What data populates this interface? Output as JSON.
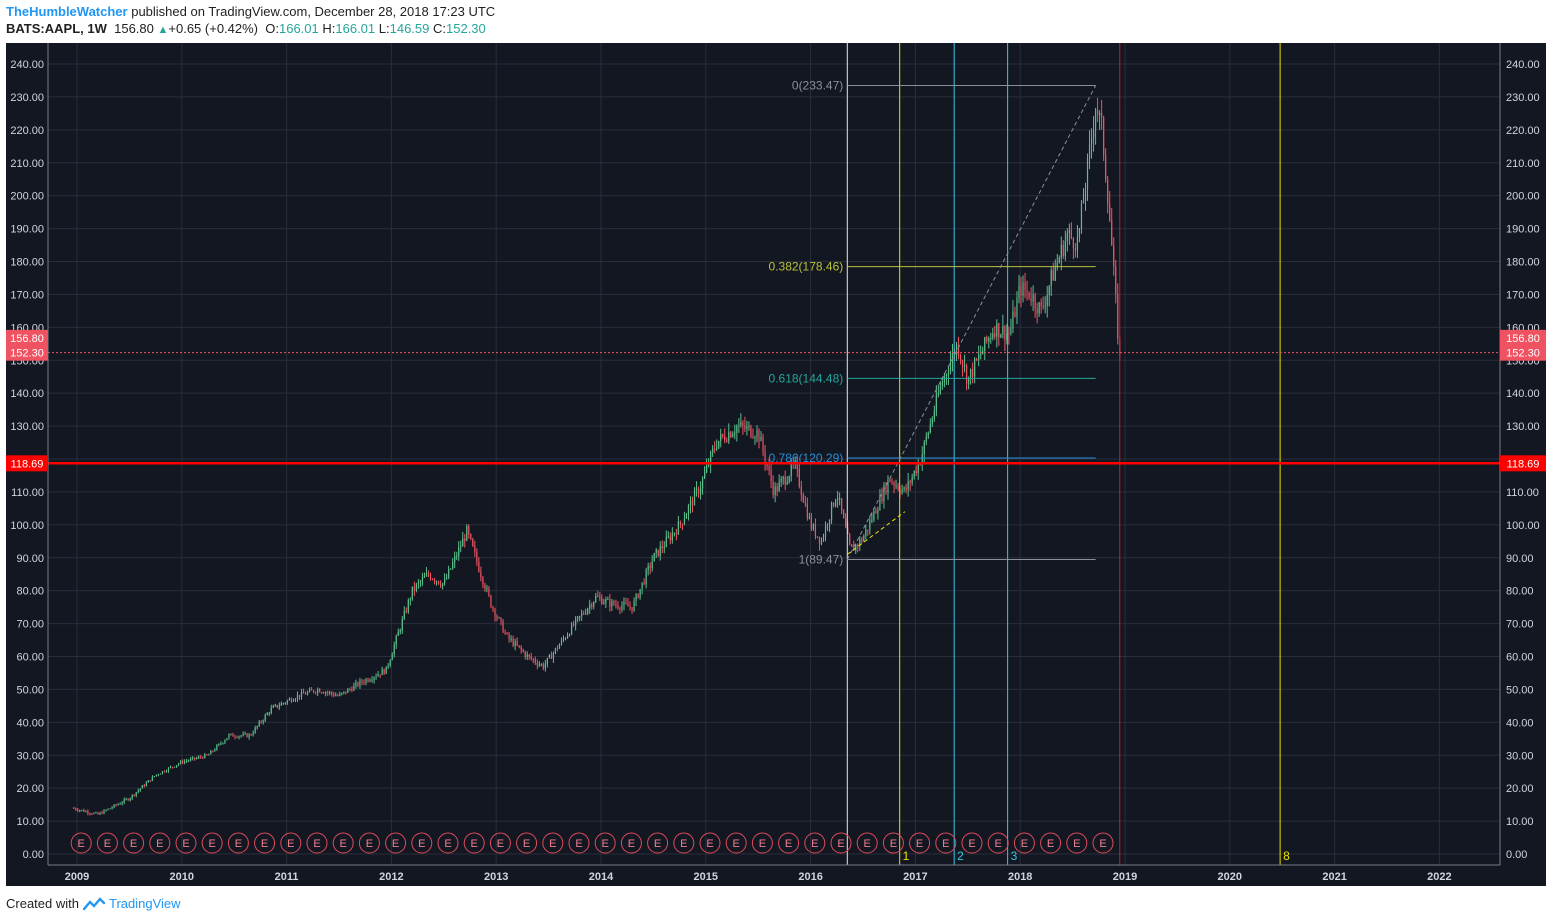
{
  "header": {
    "author": "TheHumbleWatcher",
    "published": "published on TradingView.com, December 28, 2018 17:23 UTC",
    "symbol": "BATS:AAPL, 1W",
    "price": "156.80",
    "change_arrow": "▲",
    "change": "+0.65 (+0.42%)",
    "open_label": "O:",
    "open": "166.01",
    "high_label": "H:",
    "high": "166.01",
    "low_label": "L:",
    "low": "146.59",
    "close_label": "C:",
    "close": "152.30"
  },
  "footer": {
    "created_with": "Created with",
    "brand": "TradingView"
  },
  "colors": {
    "background": "#131722",
    "up": "#5bbd8a",
    "down": "#ef5362",
    "grid": "#2a2e39",
    "axis_text": "#d1d4dc",
    "support": "#ff0000",
    "yellow": "#e8e000",
    "cyan": "#35c8e6",
    "earnings": "#e04a5a"
  },
  "chart_data": {
    "type": "candlestick",
    "ylim": [
      0,
      240
    ],
    "y_ticks": [
      "0.00",
      "10.00",
      "20.00",
      "30.00",
      "40.00",
      "50.00",
      "60.00",
      "70.00",
      "80.00",
      "90.00",
      "100.00",
      "110.00",
      "120.00",
      "130.00",
      "140.00",
      "150.00",
      "160.00",
      "170.00",
      "180.00",
      "190.00",
      "200.00",
      "210.00",
      "220.00",
      "230.00",
      "240.00"
    ],
    "x_ticks": [
      "2009",
      "2010",
      "2011",
      "2012",
      "2013",
      "2014",
      "2015",
      "2016",
      "2017",
      "2018",
      "2019",
      "2020",
      "2021",
      "2022"
    ],
    "series": [
      {
        "keypoints": [
          [
            2008.95,
            14
          ],
          [
            2009.2,
            12
          ],
          [
            2009.5,
            17
          ],
          [
            2009.75,
            24
          ],
          [
            2010.0,
            28
          ],
          [
            2010.25,
            30
          ],
          [
            2010.45,
            36
          ],
          [
            2010.65,
            36
          ],
          [
            2010.85,
            44
          ],
          [
            2011.1,
            48
          ],
          [
            2011.3,
            50
          ],
          [
            2011.5,
            48
          ],
          [
            2011.7,
            52
          ],
          [
            2011.95,
            56
          ],
          [
            2012.2,
            80
          ],
          [
            2012.35,
            85
          ],
          [
            2012.5,
            82
          ],
          [
            2012.72,
            98
          ],
          [
            2012.95,
            76
          ],
          [
            2013.1,
            66
          ],
          [
            2013.3,
            60
          ],
          [
            2013.45,
            57
          ],
          [
            2013.75,
            70
          ],
          [
            2013.95,
            78
          ],
          [
            2014.1,
            76
          ],
          [
            2014.3,
            75
          ],
          [
            2014.5,
            90
          ],
          [
            2014.75,
            100
          ],
          [
            2014.95,
            112
          ],
          [
            2015.1,
            125
          ],
          [
            2015.3,
            130
          ],
          [
            2015.5,
            128
          ],
          [
            2015.65,
            110
          ],
          [
            2015.85,
            118
          ],
          [
            2016.0,
            100
          ],
          [
            2016.1,
            95
          ],
          [
            2016.25,
            110
          ],
          [
            2016.38,
            92
          ],
          [
            2016.5,
            96
          ],
          [
            2016.75,
            114
          ],
          [
            2016.9,
            110
          ],
          [
            2017.05,
            120
          ],
          [
            2017.25,
            143
          ],
          [
            2017.4,
            155
          ],
          [
            2017.5,
            144
          ],
          [
            2017.75,
            160
          ],
          [
            2017.9,
            158
          ],
          [
            2018.0,
            172
          ],
          [
            2018.1,
            170
          ],
          [
            2018.2,
            165
          ],
          [
            2018.3,
            175
          ],
          [
            2018.45,
            188
          ],
          [
            2018.55,
            186
          ],
          [
            2018.65,
            210
          ],
          [
            2018.72,
            228
          ],
          [
            2018.78,
            220
          ],
          [
            2018.85,
            195
          ],
          [
            2018.95,
            150
          ]
        ]
      }
    ],
    "last_price": 156.8,
    "close_price": 152.3,
    "support_level": 118.69,
    "fib_levels": [
      {
        "label": "0(233.47)",
        "value": 233.47,
        "color": "#8a8f9a"
      },
      {
        "label": "0.382(178.46)",
        "value": 178.46,
        "color": "#b7c23a"
      },
      {
        "label": "0.618(144.48)",
        "value": 144.48,
        "color": "#26a69a"
      },
      {
        "label": "0.786(120.29)",
        "value": 120.29,
        "color": "#2a8fd6"
      },
      {
        "label": "1(89.47)",
        "value": 89.47,
        "color": "#8a8f9a"
      }
    ],
    "fib_cycle_labels": [
      "1",
      "2",
      "3",
      "8"
    ],
    "earnings_marker": "E"
  }
}
